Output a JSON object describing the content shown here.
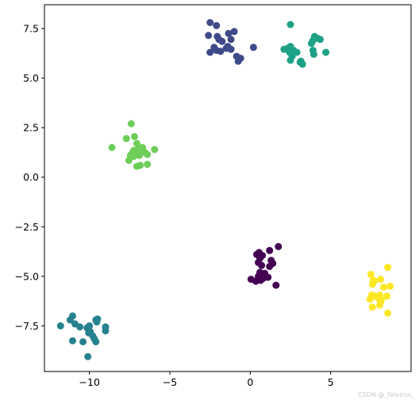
{
  "chart_data": {
    "type": "scatter",
    "title": "",
    "xlabel": "",
    "ylabel": "",
    "xlim": [
      -12.8,
      10.0
    ],
    "ylim": [
      -9.8,
      8.7
    ],
    "grid": false,
    "legend": "none",
    "xticks": [
      -10,
      -5,
      0,
      5
    ],
    "yticks": [
      7.5,
      5.0,
      2.5,
      0.0,
      -2.5,
      -5.0,
      -7.5
    ],
    "xtick_labels": [
      "−10",
      "−5",
      "0",
      "5"
    ],
    "ytick_labels": [
      "7.5",
      "5.0",
      "2.5",
      "0.0",
      "−2.5",
      "−5.0",
      "−7.5"
    ],
    "series": [
      {
        "color": "#440154",
        "points": [
          [
            0.4,
            -3.9
          ],
          [
            0.55,
            -3.8
          ],
          [
            0.75,
            -3.95
          ],
          [
            0.6,
            -4.1
          ],
          [
            0.5,
            -4.3
          ],
          [
            0.7,
            -4.45
          ],
          [
            1.2,
            -3.7
          ],
          [
            1.3,
            -4.2
          ],
          [
            1.4,
            -4.35
          ],
          [
            1.75,
            -3.5
          ],
          [
            1.2,
            -4.5
          ],
          [
            0.9,
            -4.85
          ],
          [
            0.6,
            -4.8
          ],
          [
            0.5,
            -5.0
          ],
          [
            0.8,
            -5.1
          ],
          [
            1.1,
            -5.05
          ],
          [
            0.05,
            -5.15
          ],
          [
            0.35,
            -5.25
          ],
          [
            0.65,
            -5.2
          ],
          [
            1.6,
            -5.45
          ]
        ]
      },
      {
        "color": "#3e4a89",
        "points": [
          [
            -2.5,
            7.8
          ],
          [
            -2.1,
            7.65
          ],
          [
            -1.0,
            7.35
          ],
          [
            -1.35,
            7.25
          ],
          [
            -2.6,
            7.15
          ],
          [
            -2.05,
            7.1
          ],
          [
            -1.2,
            6.95
          ],
          [
            -1.75,
            6.85
          ],
          [
            -2.25,
            6.55
          ],
          [
            -2.1,
            6.4
          ],
          [
            -1.5,
            6.5
          ],
          [
            -1.2,
            6.45
          ],
          [
            -1.85,
            6.35
          ],
          [
            -2.5,
            6.3
          ],
          [
            -0.85,
            6.1
          ],
          [
            -0.6,
            6.0
          ],
          [
            -0.75,
            5.85
          ],
          [
            0.2,
            6.55
          ],
          [
            -1.4,
            6.6
          ],
          [
            -1.95,
            6.95
          ]
        ]
      },
      {
        "color": "#26828e",
        "points": [
          [
            -11.8,
            -7.5
          ],
          [
            -10.0,
            -7.5
          ],
          [
            -10.6,
            -7.55
          ],
          [
            -11.05,
            -7.0
          ],
          [
            -10.9,
            -7.4
          ],
          [
            -9.6,
            -7.2
          ],
          [
            -9.55,
            -7.3
          ],
          [
            -9.95,
            -7.8
          ],
          [
            -10.05,
            -7.85
          ],
          [
            -10.15,
            -7.6
          ],
          [
            -9.0,
            -7.55
          ],
          [
            -9.0,
            -7.75
          ],
          [
            -9.8,
            -8.0
          ],
          [
            -9.7,
            -8.15
          ],
          [
            -9.6,
            -8.3
          ],
          [
            -11.05,
            -8.25
          ],
          [
            -10.4,
            -8.3
          ],
          [
            -10.1,
            -9.05
          ],
          [
            -9.5,
            -7.15
          ],
          [
            -11.2,
            -7.2
          ]
        ]
      },
      {
        "color": "#1fa187",
        "points": [
          [
            2.5,
            7.7
          ],
          [
            4.2,
            7.0
          ],
          [
            4.0,
            7.1
          ],
          [
            3.9,
            6.9
          ],
          [
            4.35,
            6.95
          ],
          [
            3.8,
            6.75
          ],
          [
            2.5,
            6.6
          ],
          [
            2.3,
            6.5
          ],
          [
            2.1,
            6.45
          ],
          [
            2.7,
            6.4
          ],
          [
            2.9,
            6.3
          ],
          [
            2.45,
            6.3
          ],
          [
            2.6,
            6.1
          ],
          [
            3.9,
            6.4
          ],
          [
            4.7,
            6.3
          ],
          [
            3.95,
            6.2
          ],
          [
            2.5,
            5.9
          ],
          [
            3.15,
            5.85
          ],
          [
            3.25,
            5.7
          ],
          [
            3.1,
            5.8
          ]
        ]
      },
      {
        "color": "#6ece58",
        "points": [
          [
            -7.4,
            2.7
          ],
          [
            -7.2,
            2.05
          ],
          [
            -7.7,
            1.95
          ],
          [
            -8.6,
            1.5
          ],
          [
            -7.05,
            1.7
          ],
          [
            -6.7,
            1.5
          ],
          [
            -7.25,
            1.35
          ],
          [
            -6.95,
            1.4
          ],
          [
            -5.95,
            1.4
          ],
          [
            -6.4,
            1.15
          ],
          [
            -7.1,
            1.3
          ],
          [
            -7.45,
            1.1
          ],
          [
            -6.9,
            1.1
          ],
          [
            -7.25,
            1.05
          ],
          [
            -7.55,
            0.85
          ],
          [
            -6.4,
            0.65
          ],
          [
            -7.05,
            0.55
          ],
          [
            -6.85,
            0.6
          ],
          [
            -6.55,
            1.25
          ],
          [
            -7.35,
            1.2
          ]
        ]
      },
      {
        "color": "#fde725",
        "points": [
          [
            8.55,
            -4.55
          ],
          [
            7.5,
            -4.9
          ],
          [
            8.1,
            -5.15
          ],
          [
            7.65,
            -5.2
          ],
          [
            7.6,
            -5.4
          ],
          [
            8.7,
            -5.5
          ],
          [
            8.3,
            -5.55
          ],
          [
            7.55,
            -5.95
          ],
          [
            8.05,
            -5.95
          ],
          [
            7.45,
            -6.15
          ],
          [
            7.9,
            -6.05
          ],
          [
            8.15,
            -6.2
          ],
          [
            8.5,
            -6.0
          ],
          [
            8.1,
            -6.3
          ],
          [
            8.05,
            -6.45
          ],
          [
            7.6,
            -6.55
          ],
          [
            8.55,
            -6.85
          ],
          [
            7.75,
            -6.0
          ],
          [
            8.0,
            -6.1
          ],
          [
            7.7,
            -5.25
          ]
        ]
      }
    ]
  },
  "watermark": "CSDN @_feivirus_"
}
